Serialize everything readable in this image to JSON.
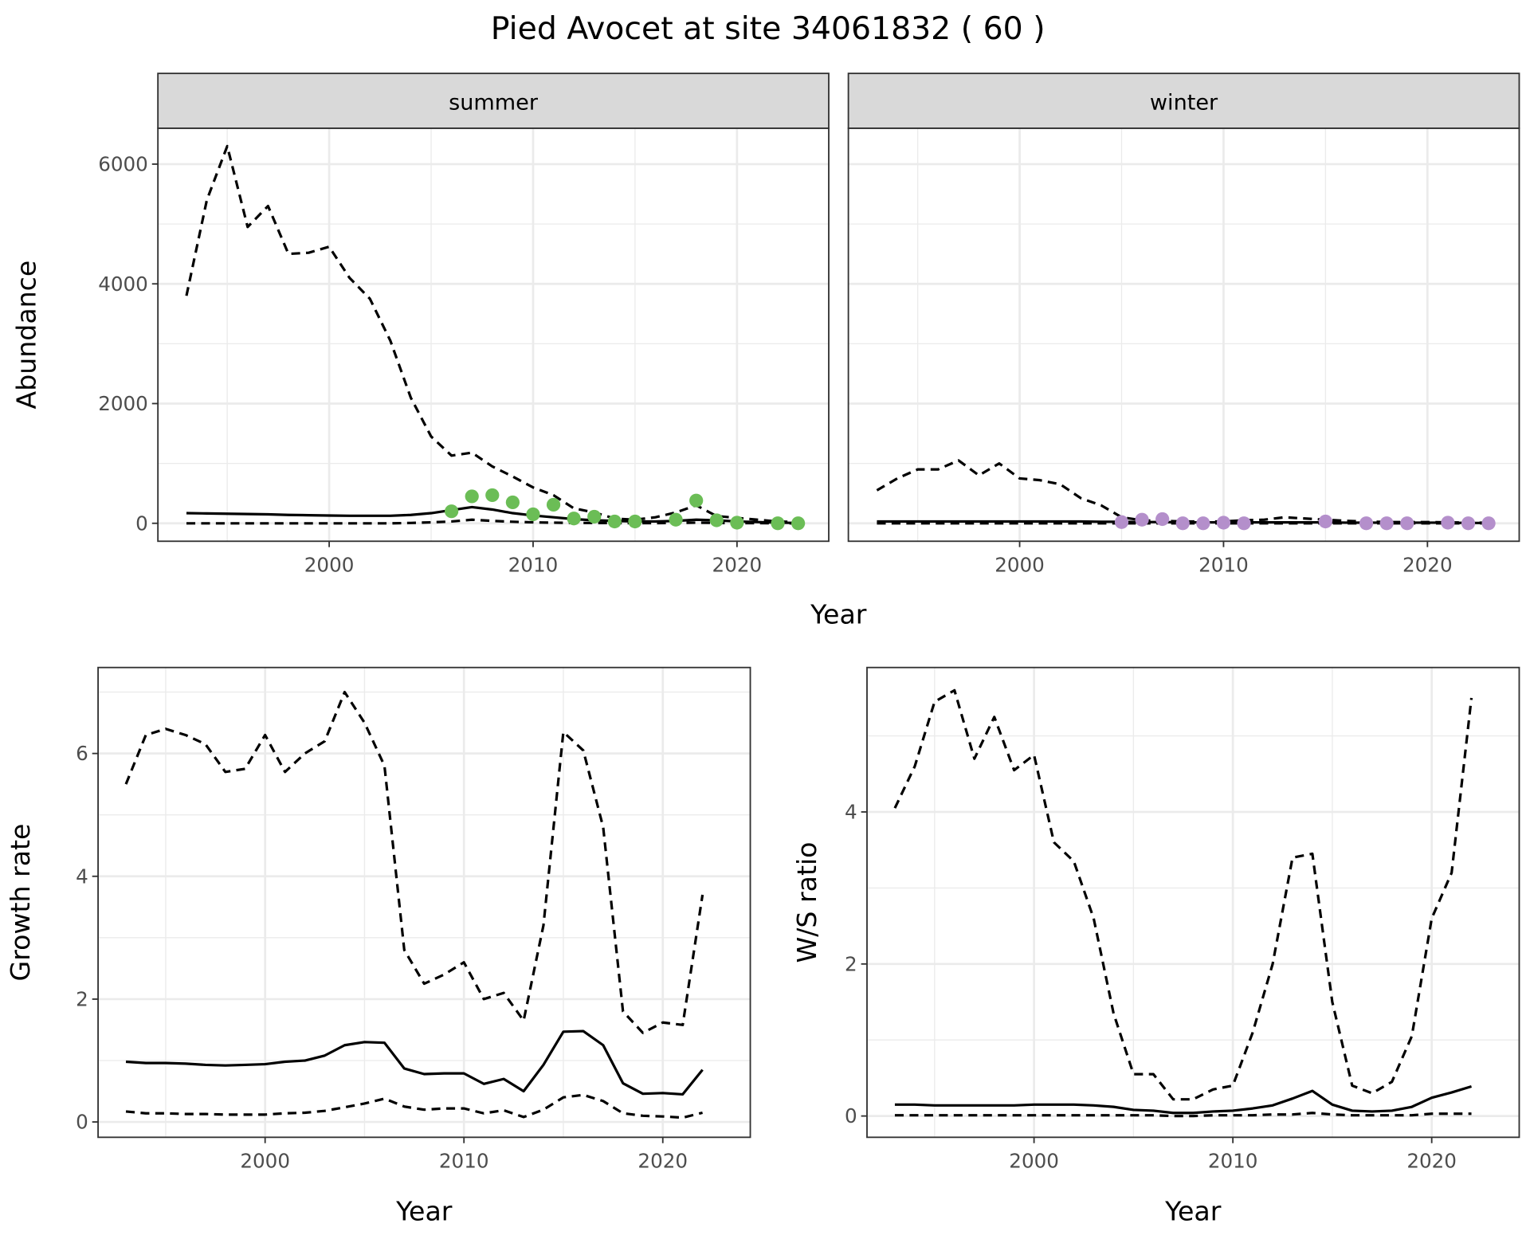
{
  "title": "Pied Avocet at site 34061832 ( 60 )",
  "colors": {
    "summer_points": "#6bbd56",
    "winter_points": "#b48fcb",
    "line": "#000000",
    "grid": "#ebebeb",
    "strip": "#d9d9d9"
  },
  "chart_data": [
    {
      "type": "line",
      "panel": "summer",
      "strip_label": "summer",
      "xlabel": "Year",
      "ylabel": "Abundance",
      "xlim": [
        1991.6,
        2024.5
      ],
      "ylim": [
        -300,
        6600
      ],
      "xticks": [
        2000,
        2010,
        2020
      ],
      "xtick_labels": [
        "2000",
        "2010",
        "2020"
      ],
      "yticks": [
        0,
        2000,
        4000,
        6000
      ],
      "ytick_labels": [
        "0",
        "2000",
        "4000",
        "6000"
      ],
      "x": [
        1993,
        1994,
        1995,
        1996,
        1997,
        1998,
        1999,
        2000,
        2001,
        2002,
        2003,
        2004,
        2005,
        2006,
        2007,
        2008,
        2009,
        2010,
        2011,
        2012,
        2013,
        2014,
        2015,
        2016,
        2017,
        2018,
        2019,
        2020,
        2021,
        2022,
        2023
      ],
      "series": [
        {
          "name": "upper",
          "style": "dashed",
          "values": [
            3800,
            5400,
            6300,
            4950,
            5300,
            4500,
            4520,
            4620,
            4100,
            3750,
            3050,
            2100,
            1450,
            1130,
            1180,
            950,
            780,
            600,
            470,
            250,
            180,
            80,
            60,
            100,
            180,
            300,
            120,
            90,
            60,
            30,
            20
          ]
        },
        {
          "name": "mean",
          "style": "solid",
          "values": [
            170,
            165,
            160,
            155,
            150,
            140,
            135,
            130,
            125,
            125,
            125,
            140,
            170,
            220,
            270,
            230,
            170,
            130,
            100,
            70,
            50,
            40,
            30,
            30,
            40,
            60,
            50,
            30,
            20,
            10,
            5
          ]
        },
        {
          "name": "lower",
          "style": "dashed",
          "values": [
            0,
            0,
            0,
            0,
            0,
            0,
            0,
            0,
            0,
            0,
            0,
            5,
            15,
            30,
            60,
            40,
            25,
            15,
            10,
            5,
            5,
            3,
            2,
            2,
            5,
            10,
            5,
            3,
            2,
            1,
            0
          ]
        }
      ],
      "points": {
        "x": [
          2006,
          2007,
          2008,
          2009,
          2010,
          2011,
          2012,
          2013,
          2014,
          2015,
          2017,
          2018,
          2019,
          2020,
          2022,
          2023
        ],
        "y": [
          200,
          450,
          470,
          350,
          150,
          310,
          80,
          110,
          30,
          30,
          60,
          380,
          50,
          10,
          0,
          0
        ]
      }
    },
    {
      "type": "line",
      "panel": "winter",
      "strip_label": "winter",
      "xlabel": "Year",
      "ylabel": "Abundance",
      "xlim": [
        1991.6,
        2024.5
      ],
      "ylim": [
        -300,
        6600
      ],
      "xticks": [
        2000,
        2010,
        2020
      ],
      "xtick_labels": [
        "2000",
        "2010",
        "2020"
      ],
      "yticks": [
        0,
        2000,
        4000,
        6000
      ],
      "ytick_labels": [
        "0",
        "2000",
        "4000",
        "6000"
      ],
      "x": [
        1993,
        1994,
        1995,
        1996,
        1997,
        1998,
        1999,
        2000,
        2001,
        2002,
        2003,
        2004,
        2005,
        2006,
        2007,
        2008,
        2009,
        2010,
        2011,
        2012,
        2013,
        2014,
        2015,
        2016,
        2017,
        2018,
        2019,
        2020,
        2021,
        2022,
        2023
      ],
      "series": [
        {
          "name": "upper",
          "style": "dashed",
          "values": [
            550,
            750,
            900,
            900,
            1050,
            800,
            1000,
            750,
            720,
            650,
            420,
            300,
            100,
            50,
            40,
            30,
            30,
            30,
            50,
            60,
            100,
            80,
            60,
            40,
            30,
            20,
            20,
            20,
            15,
            10,
            10
          ]
        },
        {
          "name": "mean",
          "style": "solid",
          "values": [
            30,
            30,
            30,
            30,
            30,
            30,
            30,
            30,
            30,
            30,
            30,
            25,
            25,
            20,
            20,
            15,
            15,
            15,
            15,
            15,
            15,
            15,
            15,
            10,
            10,
            10,
            10,
            10,
            10,
            5,
            5
          ]
        },
        {
          "name": "lower",
          "style": "dashed",
          "values": [
            0,
            0,
            0,
            0,
            0,
            0,
            0,
            0,
            0,
            0,
            0,
            0,
            0,
            0,
            0,
            0,
            0,
            0,
            0,
            0,
            0,
            0,
            0,
            0,
            0,
            0,
            0,
            0,
            0,
            0,
            0
          ]
        }
      ],
      "points": {
        "x": [
          2005,
          2006,
          2007,
          2008,
          2009,
          2010,
          2011,
          2015,
          2017,
          2018,
          2019,
          2021,
          2022,
          2023
        ],
        "y": [
          20,
          60,
          70,
          0,
          0,
          10,
          0,
          30,
          0,
          0,
          0,
          10,
          0,
          0
        ]
      }
    },
    {
      "type": "line",
      "panel": "growth",
      "xlabel": "Year",
      "ylabel": "Growth rate",
      "xlim": [
        1991.6,
        2024.4
      ],
      "ylim": [
        -0.25,
        7.4
      ],
      "xticks": [
        2000,
        2010,
        2020
      ],
      "xtick_labels": [
        "2000",
        "2010",
        "2020"
      ],
      "yticks": [
        0,
        2,
        4,
        6
      ],
      "ytick_labels": [
        "0",
        "2",
        "4",
        "6"
      ],
      "x": [
        1993,
        1994,
        1995,
        1996,
        1997,
        1998,
        1999,
        2000,
        2001,
        2002,
        2003,
        2004,
        2005,
        2006,
        2007,
        2008,
        2009,
        2010,
        2011,
        2012,
        2013,
        2014,
        2015,
        2016,
        2017,
        2018,
        2019,
        2020,
        2021,
        2022
      ],
      "series": [
        {
          "name": "upper",
          "style": "dashed",
          "values": [
            5.5,
            6.3,
            6.4,
            6.3,
            6.15,
            5.7,
            5.75,
            6.3,
            5.7,
            6.0,
            6.2,
            7.0,
            6.5,
            5.8,
            2.8,
            2.25,
            2.4,
            2.6,
            2.0,
            2.1,
            1.65,
            3.2,
            6.35,
            6.05,
            4.8,
            1.8,
            1.45,
            1.62,
            1.58,
            3.7
          ]
        },
        {
          "name": "mean",
          "style": "solid",
          "values": [
            0.98,
            0.96,
            0.96,
            0.95,
            0.93,
            0.92,
            0.93,
            0.94,
            0.98,
            1.0,
            1.08,
            1.25,
            1.3,
            1.29,
            0.87,
            0.78,
            0.79,
            0.79,
            0.62,
            0.7,
            0.5,
            0.93,
            1.47,
            1.48,
            1.25,
            0.63,
            0.46,
            0.47,
            0.45,
            0.85
          ]
        },
        {
          "name": "lower",
          "style": "dashed",
          "values": [
            0.17,
            0.14,
            0.14,
            0.13,
            0.13,
            0.12,
            0.12,
            0.12,
            0.14,
            0.15,
            0.18,
            0.24,
            0.3,
            0.38,
            0.25,
            0.2,
            0.22,
            0.22,
            0.14,
            0.19,
            0.08,
            0.2,
            0.4,
            0.44,
            0.34,
            0.14,
            0.1,
            0.09,
            0.07,
            0.15
          ]
        }
      ]
    },
    {
      "type": "line",
      "panel": "ratio",
      "xlabel": "Year",
      "ylabel": "W/S ratio",
      "xlim": [
        1991.6,
        2024.4
      ],
      "ylim": [
        -0.28,
        5.9
      ],
      "xticks": [
        2000,
        2010,
        2020
      ],
      "xtick_labels": [
        "2000",
        "2010",
        "2020"
      ],
      "yticks": [
        0,
        2,
        4
      ],
      "ytick_labels": [
        "0",
        "2",
        "4"
      ],
      "x": [
        1993,
        1994,
        1995,
        1996,
        1997,
        1998,
        1999,
        2000,
        2001,
        2002,
        2003,
        2004,
        2005,
        2006,
        2007,
        2008,
        2009,
        2010,
        2011,
        2012,
        2013,
        2014,
        2015,
        2016,
        2017,
        2018,
        2019,
        2020,
        2021,
        2022
      ],
      "series": [
        {
          "name": "upper",
          "style": "dashed",
          "values": [
            4.05,
            4.6,
            5.45,
            5.6,
            4.7,
            5.25,
            4.55,
            4.75,
            3.6,
            3.35,
            2.6,
            1.35,
            0.55,
            0.55,
            0.22,
            0.22,
            0.35,
            0.4,
            1.1,
            2.0,
            3.4,
            3.45,
            1.5,
            0.4,
            0.3,
            0.45,
            1.05,
            2.6,
            3.2,
            5.5
          ]
        },
        {
          "name": "mean",
          "style": "solid",
          "values": [
            0.15,
            0.15,
            0.14,
            0.14,
            0.14,
            0.14,
            0.14,
            0.15,
            0.15,
            0.15,
            0.14,
            0.12,
            0.08,
            0.07,
            0.04,
            0.04,
            0.06,
            0.07,
            0.1,
            0.14,
            0.23,
            0.33,
            0.15,
            0.07,
            0.06,
            0.07,
            0.12,
            0.24,
            0.31,
            0.39
          ]
        },
        {
          "name": "lower",
          "style": "dashed",
          "values": [
            0.01,
            0.01,
            0.01,
            0.01,
            0.01,
            0.01,
            0.01,
            0.01,
            0.01,
            0.01,
            0.01,
            0.01,
            0.01,
            0.01,
            0.0,
            0.0,
            0.01,
            0.01,
            0.01,
            0.02,
            0.02,
            0.04,
            0.02,
            0.01,
            0.01,
            0.01,
            0.01,
            0.03,
            0.03,
            0.03
          ]
        }
      ]
    }
  ]
}
